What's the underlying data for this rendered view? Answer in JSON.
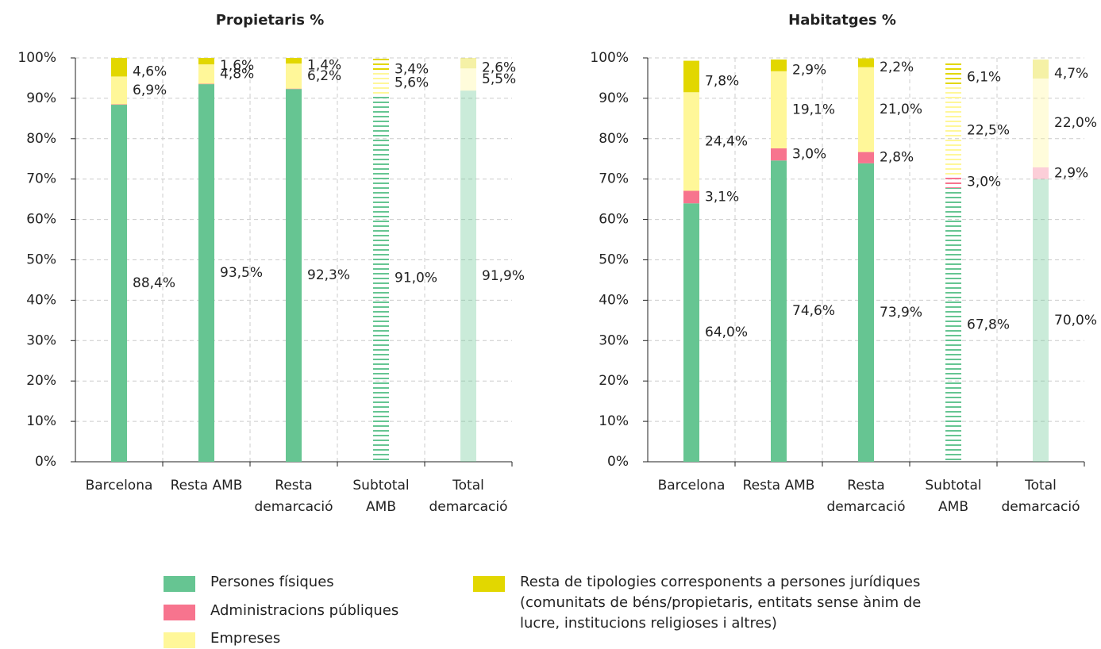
{
  "chart_data": [
    {
      "type": "stacked_bar",
      "title": "Propietaris %",
      "categories": [
        [
          "Barcelona"
        ],
        [
          "Resta AMB"
        ],
        [
          "Resta",
          "demarcació"
        ],
        [
          "Subtotal",
          "AMB"
        ],
        [
          "Total",
          "demarcació"
        ]
      ],
      "bar_styles": [
        "solid",
        "solid",
        "solid",
        "striped",
        "light"
      ],
      "series": [
        {
          "name": "Persones físiques",
          "color": "#66c592",
          "values": [
            88.4,
            93.5,
            92.3,
            91.0,
            91.9
          ],
          "value_labels": [
            "88,4%",
            "93,5%",
            "92,3%",
            "91,0%",
            "91,9%"
          ]
        },
        {
          "name": "Administracions públiques",
          "color": "#f7748e",
          "values": [
            0.1,
            0.1,
            0.1,
            0,
            0
          ],
          "value_labels": [
            null,
            null,
            null,
            null,
            null
          ]
        },
        {
          "name": "Empreses",
          "color": "#fff799",
          "values": [
            6.9,
            4.8,
            6.2,
            5.6,
            5.5
          ],
          "value_labels": [
            "6,9%",
            "4,8%",
            "6,2%",
            "5,6%",
            "5,5%"
          ]
        },
        {
          "name": "Resta de tipologies corresponents a persones jurídiques (comunitats de béns/propietaris, entitats sense ànim de lucre, institucions religioses i altres)",
          "color": "#e2d700",
          "values": [
            4.6,
            1.6,
            1.4,
            3.4,
            2.6
          ],
          "value_labels": [
            "4,6%",
            "1,6%",
            "1,4%",
            "3,4%",
            "2,6%"
          ]
        }
      ],
      "ylim": [
        0,
        100
      ],
      "yticks": [
        {
          "value": 0,
          "label": "0%"
        },
        {
          "value": 10,
          "label": "10%"
        },
        {
          "value": 20,
          "label": "20%"
        },
        {
          "value": 30,
          "label": "30%"
        },
        {
          "value": 40,
          "label": "40%"
        },
        {
          "value": 50,
          "label": "50%"
        },
        {
          "value": 60,
          "label": "60%"
        },
        {
          "value": 70,
          "label": "70%"
        },
        {
          "value": 80,
          "label": "80%"
        },
        {
          "value": 90,
          "label": "90%"
        },
        {
          "value": 100,
          "label": "100%"
        }
      ],
      "grid": true
    },
    {
      "type": "stacked_bar",
      "title": "Habitatges %",
      "categories": [
        [
          "Barcelona"
        ],
        [
          "Resta AMB"
        ],
        [
          "Resta",
          "demarcació"
        ],
        [
          "Subtotal",
          "AMB"
        ],
        [
          "Total",
          "demarcació"
        ]
      ],
      "bar_styles": [
        "solid",
        "solid",
        "solid",
        "striped",
        "light"
      ],
      "series": [
        {
          "name": "Persones físiques",
          "color": "#66c592",
          "values": [
            64.0,
            74.6,
            73.9,
            67.8,
            70.0
          ],
          "value_labels": [
            "64,0%",
            "74,6%",
            "73,9%",
            "67,8%",
            "70,0%"
          ]
        },
        {
          "name": "Administracions públiques",
          "color": "#f7748e",
          "values": [
            3.1,
            3.0,
            2.8,
            3.0,
            2.9
          ],
          "value_labels": [
            "3,1%",
            "3,0%",
            "2,8%",
            "3,0%",
            "2,9%"
          ]
        },
        {
          "name": "Empreses",
          "color": "#fff799",
          "values": [
            24.4,
            19.1,
            21.0,
            22.5,
            22.0
          ],
          "value_labels": [
            "24,4%",
            "19,1%",
            "21,0%",
            "22,5%",
            "22,0%"
          ]
        },
        {
          "name": "Resta de tipologies corresponents a persones jurídiques (comunitats de béns/propietaris, entitats sense ànim de lucre, institucions religioses i altres)",
          "color": "#e2d700",
          "values": [
            7.8,
            2.9,
            2.2,
            6.1,
            4.7
          ],
          "value_labels": [
            "7,8%",
            "2,9%",
            "2,2%",
            "6,1%",
            "4,7%"
          ]
        }
      ],
      "ylim": [
        0,
        100
      ],
      "yticks": [
        {
          "value": 0,
          "label": "0%"
        },
        {
          "value": 10,
          "label": "10%"
        },
        {
          "value": 20,
          "label": "20%"
        },
        {
          "value": 30,
          "label": "30%"
        },
        {
          "value": 40,
          "label": "40%"
        },
        {
          "value": 50,
          "label": "50%"
        },
        {
          "value": 60,
          "label": "60%"
        },
        {
          "value": 70,
          "label": "70%"
        },
        {
          "value": 80,
          "label": "80%"
        },
        {
          "value": 90,
          "label": "90%"
        },
        {
          "value": 100,
          "label": "100%"
        }
      ],
      "grid": true
    }
  ]
}
